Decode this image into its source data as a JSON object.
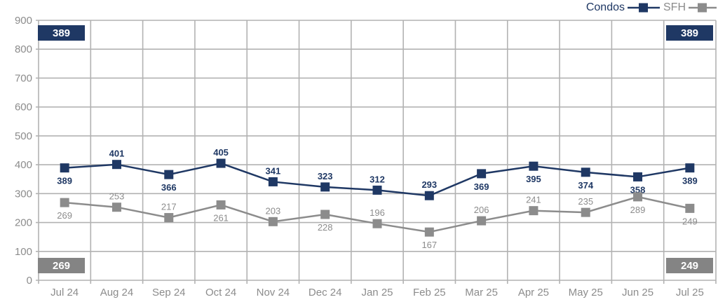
{
  "legend": {
    "condos_label": "Condos",
    "sfh_label": "SFH"
  },
  "colors": {
    "condos": "#1F3864",
    "sfh": "#8C8C8C",
    "badge_gray": "#848484",
    "gridline": "#B2B2B2",
    "axis_text": "#8C8C8C"
  },
  "chart_data": {
    "type": "line",
    "title": "",
    "xlabel": "",
    "ylabel": "",
    "categories": [
      "Jul 24",
      "Aug 24",
      "Sep 24",
      "Oct 24",
      "Nov 24",
      "Dec 24",
      "Jan 25",
      "Feb 25",
      "Mar 25",
      "Apr 25",
      "May 25",
      "Jun 25",
      "Jul 25"
    ],
    "series": [
      {
        "name": "Condos",
        "color": "#1F3864",
        "values": [
          389,
          401,
          366,
          405,
          341,
          323,
          312,
          293,
          369,
          395,
          374,
          358,
          389
        ],
        "label_side": [
          "below",
          "above",
          "below",
          "above",
          "above",
          "above",
          "above",
          "above",
          "below",
          "below",
          "below",
          "below",
          "below"
        ]
      },
      {
        "name": "SFH",
        "color": "#8C8C8C",
        "values": [
          269,
          253,
          217,
          261,
          203,
          228,
          196,
          167,
          206,
          241,
          235,
          289,
          249
        ],
        "label_side": [
          "below",
          "above",
          "above",
          "below",
          "above",
          "below",
          "above",
          "below",
          "above",
          "above",
          "above",
          "below",
          "below"
        ]
      }
    ],
    "ylim": [
      0,
      900
    ],
    "y_step": 100,
    "y_ticks": [
      "0",
      "100",
      "200",
      "300",
      "400",
      "500",
      "600",
      "700",
      "800",
      "900"
    ],
    "grid": true,
    "legend_position": "top-right",
    "badges": [
      {
        "corner": "top-left",
        "value": "389",
        "color": "#1F3864",
        "series": "Condos"
      },
      {
        "corner": "top-right",
        "value": "389",
        "color": "#1F3864",
        "series": "Condos"
      },
      {
        "corner": "bottom-left",
        "value": "269",
        "color": "#848484",
        "series": "SFH"
      },
      {
        "corner": "bottom-right",
        "value": "249",
        "color": "#848484",
        "series": "SFH"
      }
    ]
  }
}
